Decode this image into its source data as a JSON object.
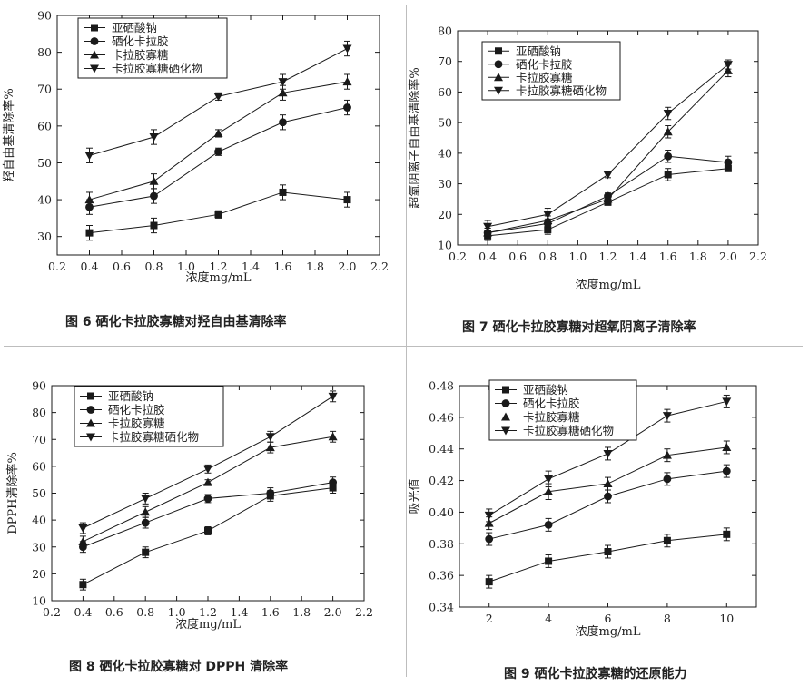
{
  "chart_data": [
    {
      "id": "fig6",
      "type": "line",
      "title": "",
      "caption": "图 6  硒化卡拉胶寡糖对羟自由基清除率",
      "xlabel": "浓度mg/mL",
      "ylabel": "羟自由基清除率%",
      "xlim": [
        0.2,
        2.2
      ],
      "ylim": [
        25,
        90
      ],
      "xticks": [
        0.2,
        0.4,
        0.6,
        0.8,
        1.0,
        1.2,
        1.4,
        1.6,
        1.8,
        2.0,
        2.2
      ],
      "xtick_labels": [
        "0.2",
        "0.4",
        "0.6",
        "0.8",
        "1.0",
        "1.2",
        "1.4",
        "1.6",
        "1.8",
        "2.0",
        "2.2"
      ],
      "yticks": [
        30,
        40,
        50,
        60,
        70,
        80,
        90
      ],
      "ytick_labels": [
        "30",
        "40",
        "50",
        "60",
        "70",
        "80",
        "90"
      ],
      "legend_position": "top-left",
      "x": [
        0.4,
        0.8,
        1.2,
        1.6,
        2.0
      ],
      "series": [
        {
          "name": "亚硒酸钠",
          "marker": "square",
          "values": [
            31,
            33,
            36,
            42,
            40
          ],
          "errors": [
            2,
            2,
            1,
            2,
            2
          ]
        },
        {
          "name": "硒化卡拉胶",
          "marker": "circle",
          "values": [
            38,
            41,
            53,
            61,
            65
          ],
          "errors": [
            2,
            2,
            1,
            2,
            2
          ]
        },
        {
          "name": "卡拉胶寡糖",
          "marker": "triangle-up",
          "values": [
            40,
            45,
            58,
            69,
            72
          ],
          "errors": [
            2,
            2,
            1,
            2,
            2
          ]
        },
        {
          "name": "卡拉胶寡糖硒化物",
          "marker": "triangle-down",
          "values": [
            52,
            57,
            68,
            72,
            81
          ],
          "errors": [
            2,
            2,
            1,
            2,
            2
          ]
        }
      ]
    },
    {
      "id": "fig7",
      "type": "line",
      "title": "",
      "caption": "图 7  硒化卡拉胶寡糖对超氧阴离子清除率",
      "xlabel": "浓度mg/mL",
      "ylabel": "超氧阴离子自由基清除率%",
      "xlim": [
        0.2,
        2.2
      ],
      "ylim": [
        10,
        80
      ],
      "xticks": [
        0.2,
        0.4,
        0.6,
        0.8,
        1.0,
        1.2,
        1.4,
        1.6,
        1.8,
        2.0,
        2.2
      ],
      "xtick_labels": [
        "0.2",
        "0.4",
        "0.6",
        "0.8",
        "1.0",
        "1.2",
        "1.4",
        "1.6",
        "1.8",
        "2.0",
        "2.2"
      ],
      "yticks": [
        10,
        20,
        30,
        40,
        50,
        60,
        70,
        80
      ],
      "ytick_labels": [
        "10",
        "20",
        "30",
        "40",
        "50",
        "60",
        "70",
        "80"
      ],
      "legend_position": "top-left",
      "x": [
        0.4,
        0.8,
        1.2,
        1.6,
        2.0
      ],
      "series": [
        {
          "name": "亚硒酸钠",
          "marker": "square",
          "values": [
            13,
            15,
            24,
            33,
            35
          ],
          "errors": [
            1.5,
            1.5,
            1,
            2,
            1
          ]
        },
        {
          "name": "硒化卡拉胶",
          "marker": "circle",
          "values": [
            14,
            17,
            26,
            39,
            37
          ],
          "errors": [
            1.5,
            1.5,
            1,
            2,
            2
          ]
        },
        {
          "name": "卡拉胶寡糖",
          "marker": "triangle-up",
          "values": [
            14,
            18,
            25,
            47,
            67
          ],
          "errors": [
            1.5,
            1.5,
            1,
            2,
            2
          ]
        },
        {
          "name": "卡拉胶寡糖硒化物",
          "marker": "triangle-down",
          "values": [
            16,
            20,
            33,
            53,
            69
          ],
          "errors": [
            2,
            2,
            1,
            2,
            1.5
          ]
        }
      ]
    },
    {
      "id": "fig8",
      "type": "line",
      "title": "",
      "caption": "图 8  硒化卡拉胶寡糖对 DPPH 清除率",
      "xlabel": "浓度mg/mL",
      "ylabel": "DPPH清除率%",
      "xlim": [
        0.2,
        2.2
      ],
      "ylim": [
        10,
        90
      ],
      "xticks": [
        0.2,
        0.4,
        0.6,
        0.8,
        1.0,
        1.2,
        1.4,
        1.6,
        1.8,
        2.0,
        2.2
      ],
      "xtick_labels": [
        "0.2",
        "0.4",
        "0.6",
        "0.8",
        "1.0",
        "1.2",
        "1.4",
        "1.6",
        "1.8",
        "2.0",
        "2.2"
      ],
      "yticks": [
        10,
        20,
        30,
        40,
        50,
        60,
        70,
        80,
        90
      ],
      "ytick_labels": [
        "10",
        "20",
        "30",
        "40",
        "50",
        "60",
        "70",
        "80",
        "90"
      ],
      "legend_position": "top-left",
      "x": [
        0.4,
        0.8,
        1.2,
        1.6,
        2.0
      ],
      "series": [
        {
          "name": "亚硒酸钠",
          "marker": "square",
          "values": [
            16,
            28,
            36,
            49,
            52
          ],
          "errors": [
            2,
            2,
            1.5,
            2,
            2
          ]
        },
        {
          "name": "硒化卡拉胶",
          "marker": "circle",
          "values": [
            30,
            39,
            48,
            50,
            54
          ],
          "errors": [
            2,
            2,
            1.5,
            2,
            2
          ]
        },
        {
          "name": "卡拉胶寡糖",
          "marker": "triangle-up",
          "values": [
            32,
            43,
            54,
            67,
            71
          ],
          "errors": [
            2,
            2,
            1,
            2,
            2
          ]
        },
        {
          "name": "卡拉胶寡糖硒化物",
          "marker": "triangle-down",
          "values": [
            37,
            48,
            59,
            71,
            86
          ],
          "errors": [
            2,
            2,
            1.5,
            2,
            2
          ]
        }
      ]
    },
    {
      "id": "fig9",
      "type": "line",
      "title": "",
      "caption": "图 9  硒化卡拉胶寡糖的还原能力",
      "xlabel": "浓度mg/mL",
      "ylabel": "吸光值",
      "xlim": [
        1,
        11
      ],
      "ylim": [
        0.34,
        0.48
      ],
      "xticks": [
        2,
        4,
        6,
        8,
        10
      ],
      "xtick_labels": [
        "2",
        "4",
        "6",
        "8",
        "10"
      ],
      "yticks": [
        0.34,
        0.36,
        0.38,
        0.4,
        0.42,
        0.44,
        0.46,
        0.48
      ],
      "ytick_labels": [
        "0.34",
        "0.36",
        "0.38",
        "0.40",
        "0.42",
        "0.44",
        "0.46",
        "0.48"
      ],
      "legend_position": "top-left",
      "x": [
        2,
        4,
        6,
        8,
        10
      ],
      "series": [
        {
          "name": "亚硒酸钠",
          "marker": "square",
          "values": [
            0.356,
            0.369,
            0.375,
            0.382,
            0.386
          ],
          "errors": [
            0.004,
            0.004,
            0.004,
            0.004,
            0.004
          ]
        },
        {
          "name": "硒化卡拉胶",
          "marker": "circle",
          "values": [
            0.383,
            0.392,
            0.41,
            0.421,
            0.426
          ],
          "errors": [
            0.004,
            0.004,
            0.004,
            0.004,
            0.004
          ]
        },
        {
          "name": "卡拉胶寡糖",
          "marker": "triangle-up",
          "values": [
            0.393,
            0.413,
            0.418,
            0.436,
            0.441
          ],
          "errors": [
            0.004,
            0.005,
            0.004,
            0.004,
            0.004
          ]
        },
        {
          "name": "卡拉胶寡糖硒化物",
          "marker": "triangle-down",
          "values": [
            0.398,
            0.421,
            0.437,
            0.461,
            0.47
          ],
          "errors": [
            0.004,
            0.005,
            0.004,
            0.004,
            0.004
          ]
        }
      ]
    }
  ],
  "colors": {
    "ink": "#1a1a1a",
    "divider": "#bdbdbd"
  }
}
